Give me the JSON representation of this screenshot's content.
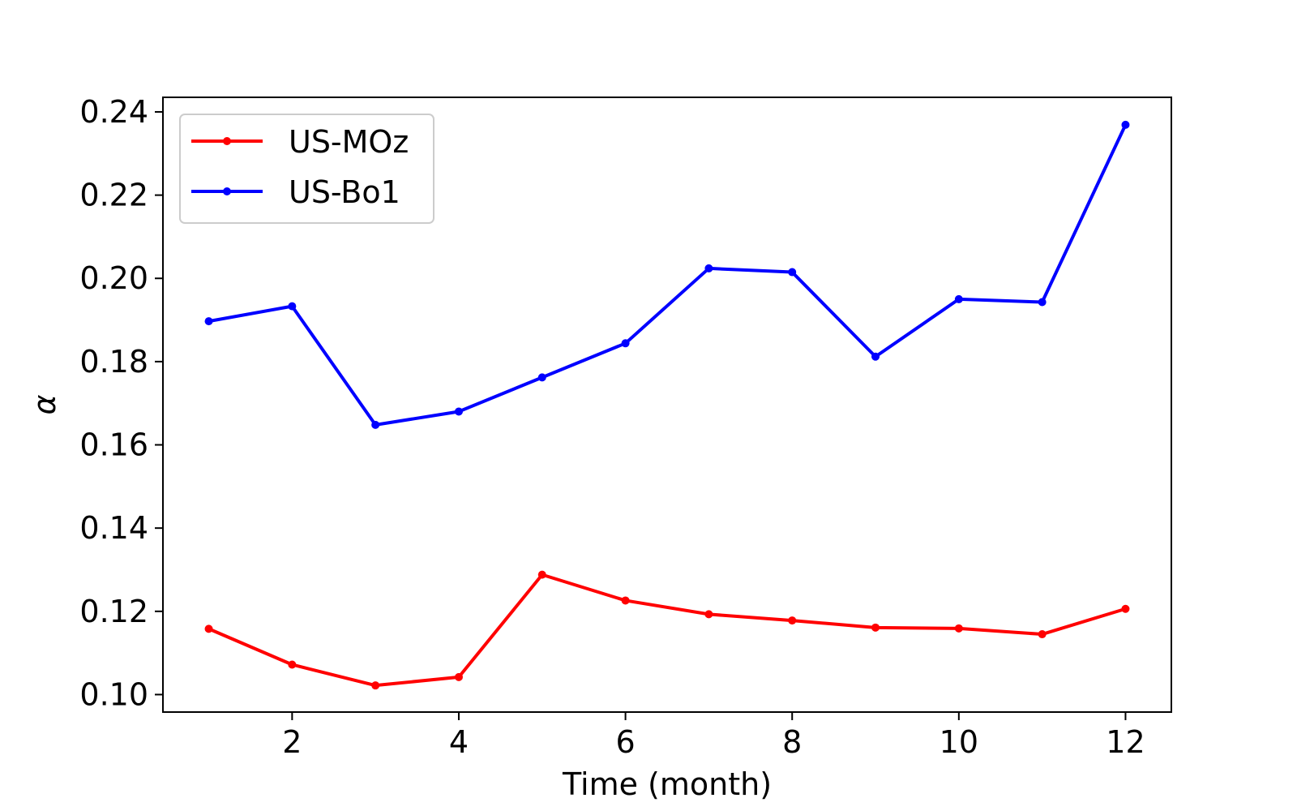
{
  "chart_data": {
    "type": "line",
    "title": "",
    "xlabel": "Time (month)",
    "ylabel": "α",
    "xlim": [
      0.45,
      12.55
    ],
    "ylim": [
      0.0958,
      0.2435
    ],
    "xticks": [
      2,
      4,
      6,
      8,
      10,
      12
    ],
    "xtick_labels": [
      "2",
      "4",
      "6",
      "8",
      "10",
      "12"
    ],
    "yticks": [
      0.1,
      0.12,
      0.14,
      0.16,
      0.18,
      0.2,
      0.22,
      0.24
    ],
    "ytick_labels": [
      "0.10",
      "0.12",
      "0.14",
      "0.16",
      "0.18",
      "0.20",
      "0.22",
      "0.24"
    ],
    "grid": false,
    "legend_position": "top-left",
    "x": [
      1,
      2,
      3,
      4,
      5,
      6,
      7,
      8,
      9,
      10,
      11,
      12
    ],
    "series": [
      {
        "name": "US-MOz",
        "color": "#ff0000",
        "values": [
          0.1158,
          0.1072,
          0.1022,
          0.1042,
          0.1288,
          0.1226,
          0.1193,
          0.1178,
          0.1161,
          0.1159,
          0.1145,
          0.1206
        ]
      },
      {
        "name": "US-Bo1",
        "color": "#0000ff",
        "values": [
          0.1897,
          0.1933,
          0.1648,
          0.168,
          0.1762,
          0.1844,
          0.2024,
          0.2015,
          0.1812,
          0.195,
          0.1943,
          0.2369
        ]
      }
    ]
  }
}
